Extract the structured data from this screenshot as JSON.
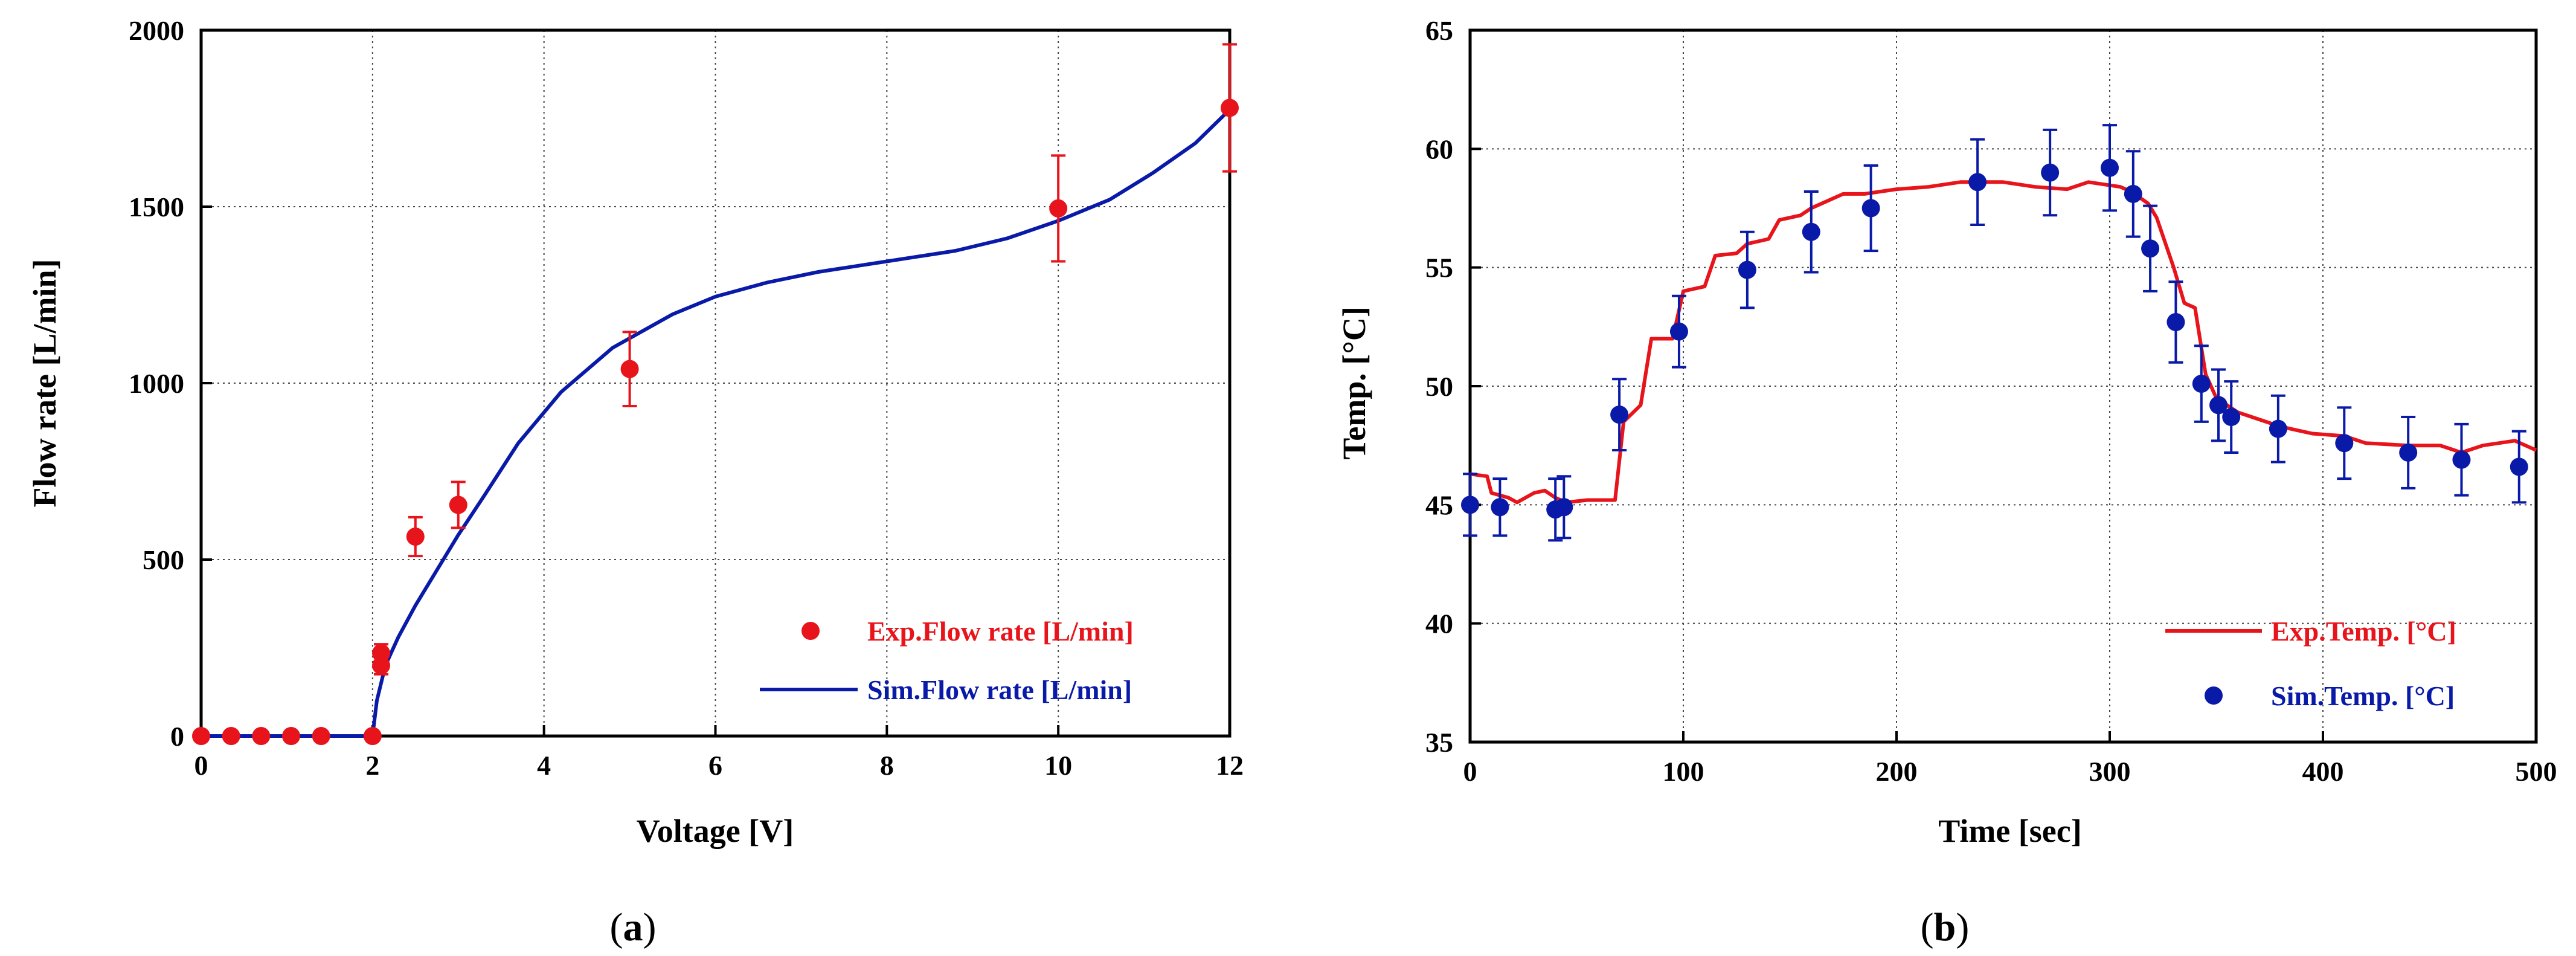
{
  "colors": {
    "exp": "#e8141b",
    "sim": "#0a1aa8",
    "axis": "#000000"
  },
  "chart_data": [
    {
      "type": "scatter+line",
      "panel_label": "a",
      "title": "",
      "xlabel": "Voltage [V]",
      "ylabel": "Flow rate [L/min]",
      "xlim": [
        0,
        12
      ],
      "ylim": [
        0,
        2000
      ],
      "xticks": [
        0,
        2,
        4,
        6,
        8,
        10,
        12
      ],
      "yticks": [
        0,
        500,
        1000,
        1500,
        2000
      ],
      "xtick_labels": [
        "0",
        "2",
        "4",
        "6",
        "8",
        "10",
        "12"
      ],
      "ytick_labels": [
        "0",
        "500",
        "1000",
        "1500",
        "2000"
      ],
      "grid": true,
      "legend_position": "bottom-right",
      "series": [
        {
          "name": "Exp.Flow rate [L/min]",
          "kind": "points",
          "x": [
            0,
            0.35,
            0.7,
            1.05,
            1.4,
            2.0,
            2.1,
            2.1,
            2.5,
            3.0,
            5.0,
            10.0,
            12.0
          ],
          "y": [
            0,
            0,
            0,
            0,
            0,
            0,
            200,
            235,
            565,
            655,
            1040,
            1495,
            1780
          ],
          "err": [
            0,
            0,
            0,
            0,
            0,
            0,
            25,
            25,
            55,
            65,
            105,
            150,
            180
          ]
        },
        {
          "name": "Sim.Flow rate [L/min]",
          "kind": "line",
          "x": [
            0,
            2.0,
            2.05,
            2.15,
            2.3,
            2.5,
            2.75,
            3.0,
            3.3,
            3.7,
            4.2,
            4.8,
            5.5,
            6.0,
            6.6,
            7.2,
            8.0,
            8.8,
            9.4,
            10.0,
            10.6,
            11.1,
            11.6,
            12.0
          ],
          "y": [
            0,
            0,
            100,
            200,
            280,
            370,
            470,
            570,
            680,
            830,
            975,
            1100,
            1195,
            1245,
            1285,
            1315,
            1345,
            1375,
            1410,
            1460,
            1520,
            1595,
            1680,
            1775
          ]
        }
      ]
    },
    {
      "type": "line+scatter",
      "panel_label": "b",
      "title": "",
      "xlabel": "Time [sec]",
      "ylabel": "Temp. [°C]",
      "xlim": [
        0,
        500
      ],
      "ylim": [
        35,
        65
      ],
      "xticks": [
        0,
        100,
        200,
        300,
        400,
        500
      ],
      "yticks": [
        35,
        40,
        45,
        50,
        55,
        60,
        65
      ],
      "xtick_labels": [
        "0",
        "100",
        "200",
        "300",
        "400",
        "500"
      ],
      "ytick_labels": [
        "35",
        "40",
        "45",
        "50",
        "55",
        "60",
        "65"
      ],
      "grid": true,
      "legend_position": "bottom-right",
      "series": [
        {
          "name": "Exp.Temp. [°C]",
          "kind": "step-line",
          "x": [
            0,
            8,
            10,
            18,
            22,
            30,
            35,
            40,
            45,
            55,
            62,
            68,
            72,
            80,
            85,
            95,
            100,
            110,
            115,
            125,
            130,
            140,
            145,
            155,
            160,
            170,
            175,
            185,
            200,
            215,
            230,
            250,
            265,
            280,
            290,
            305,
            310,
            318,
            322,
            330,
            335,
            340,
            345,
            350,
            355,
            360,
            370,
            380,
            395,
            410,
            420,
            440,
            455,
            465,
            475,
            490,
            500
          ],
          "y": [
            46.3,
            46.2,
            45.5,
            45.3,
            45.1,
            45.5,
            45.6,
            45.3,
            45.1,
            45.2,
            45.2,
            45.2,
            48.5,
            49.2,
            52.0,
            52.0,
            54.0,
            54.2,
            55.5,
            55.6,
            56.0,
            56.2,
            57.0,
            57.2,
            57.5,
            57.9,
            58.1,
            58.1,
            58.3,
            58.4,
            58.6,
            58.6,
            58.4,
            58.3,
            58.6,
            58.4,
            58.2,
            57.7,
            57.1,
            55.0,
            53.5,
            53.3,
            50.5,
            49.5,
            49.2,
            48.9,
            48.6,
            48.3,
            48.0,
            47.9,
            47.6,
            47.5,
            47.5,
            47.2,
            47.5,
            47.7,
            47.3
          ]
        },
        {
          "name": "Sim.Temp. [°C]",
          "kind": "points",
          "x": [
            0,
            14,
            40,
            44,
            70,
            98,
            130,
            160,
            188,
            238,
            272,
            300,
            311,
            319,
            331,
            343,
            351,
            357,
            379,
            410,
            440,
            465,
            492
          ],
          "y": [
            45.0,
            44.9,
            44.8,
            44.9,
            48.8,
            52.3,
            54.9,
            56.5,
            57.5,
            58.6,
            59.0,
            59.2,
            58.1,
            55.8,
            52.7,
            50.1,
            49.2,
            48.7,
            48.2,
            47.6,
            47.2,
            46.9,
            46.6
          ],
          "err": [
            1.3,
            1.2,
            1.3,
            1.3,
            1.5,
            1.5,
            1.6,
            1.7,
            1.8,
            1.8,
            1.8,
            1.8,
            1.8,
            1.8,
            1.7,
            1.6,
            1.5,
            1.5,
            1.4,
            1.5,
            1.5,
            1.5,
            1.5
          ]
        }
      ]
    }
  ]
}
